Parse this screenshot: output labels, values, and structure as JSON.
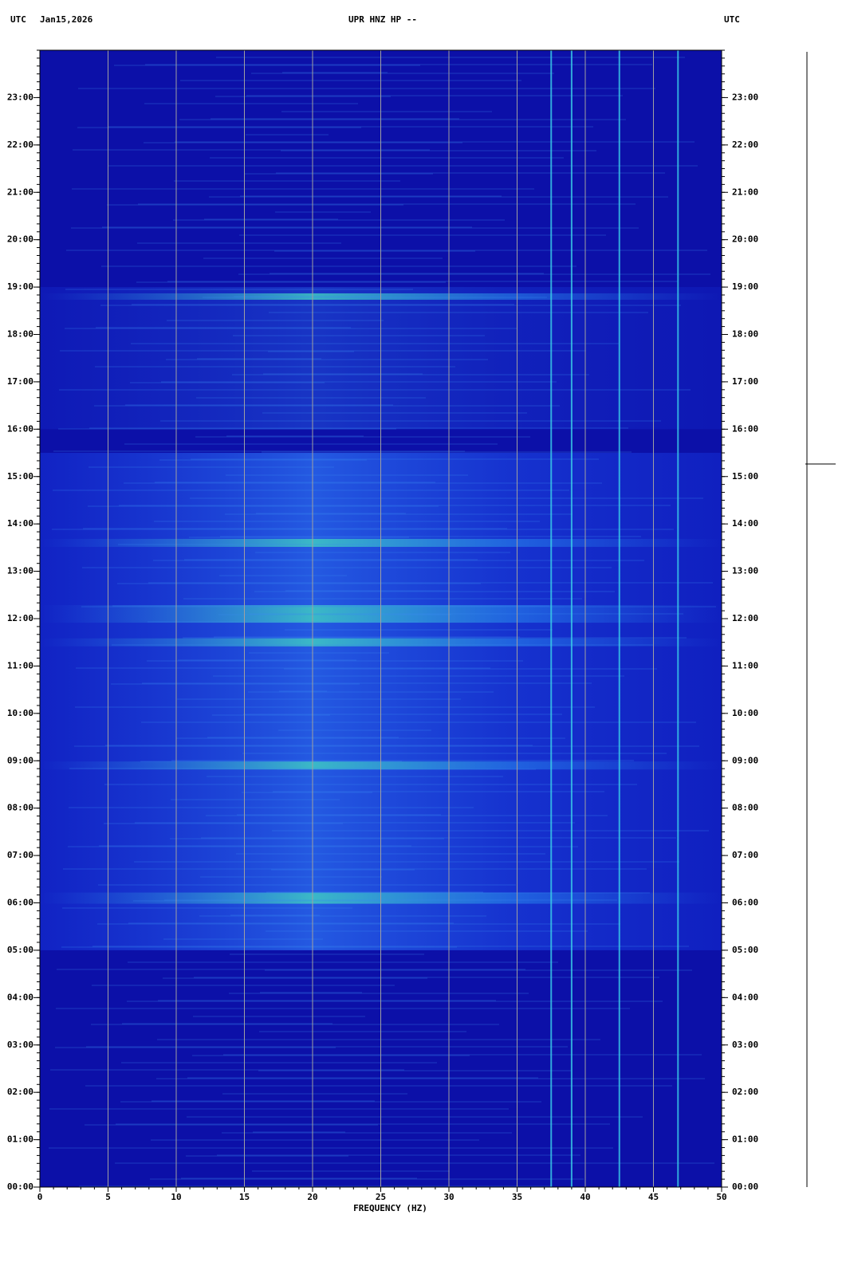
{
  "header": {
    "left_zone": "UTC",
    "date": "Jan15,2026",
    "station": "UPR HNZ HP --",
    "right_zone": "UTC"
  },
  "chart_data": {
    "type": "spectrogram",
    "xlabel": "FREQUENCY (HZ)",
    "xlim": [
      0,
      50
    ],
    "xticks": [
      0,
      5,
      10,
      15,
      20,
      25,
      30,
      35,
      40,
      45,
      50
    ],
    "ylim": [
      0,
      24
    ],
    "yticks": [
      {
        "value": 0,
        "label": "00:00"
      },
      {
        "value": 1,
        "label": "01:00"
      },
      {
        "value": 2,
        "label": "02:00"
      },
      {
        "value": 3,
        "label": "03:00"
      },
      {
        "value": 4,
        "label": "04:00"
      },
      {
        "value": 5,
        "label": "05:00"
      },
      {
        "value": 6,
        "label": "06:00"
      },
      {
        "value": 7,
        "label": "07:00"
      },
      {
        "value": 8,
        "label": "08:00"
      },
      {
        "value": 9,
        "label": "09:00"
      },
      {
        "value": 10,
        "label": "10:00"
      },
      {
        "value": 11,
        "label": "11:00"
      },
      {
        "value": 12,
        "label": "12:00"
      },
      {
        "value": 13,
        "label": "13:00"
      },
      {
        "value": 14,
        "label": "14:00"
      },
      {
        "value": 15,
        "label": "15:00"
      },
      {
        "value": 16,
        "label": "16:00"
      },
      {
        "value": 17,
        "label": "17:00"
      },
      {
        "value": 18,
        "label": "18:00"
      },
      {
        "value": 19,
        "label": "19:00"
      },
      {
        "value": 20,
        "label": "20:00"
      },
      {
        "value": 21,
        "label": "21:00"
      },
      {
        "value": 22,
        "label": "22:00"
      },
      {
        "value": 23,
        "label": "23:00"
      }
    ],
    "grid": true,
    "grid_color": "#a0a0a0",
    "background_color": "#0c10a8",
    "lines": {
      "color": "#3ad0e8",
      "x": [
        37.5,
        39,
        42.5,
        46.8
      ]
    }
  }
}
